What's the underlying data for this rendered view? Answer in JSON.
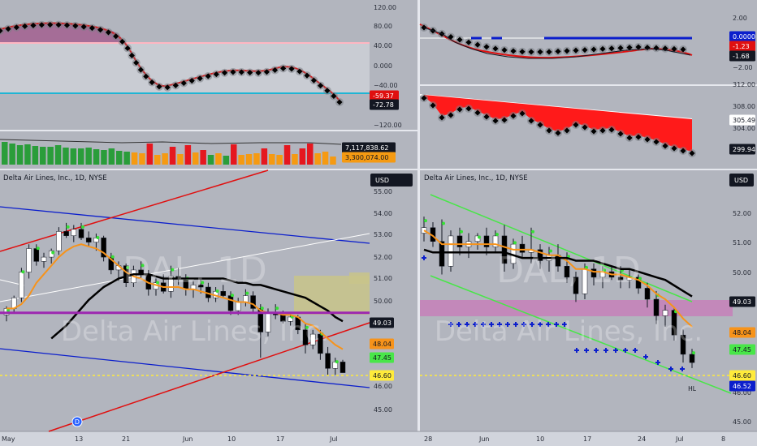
{
  "colors": {
    "bg": "#b2b5be",
    "up": "#ffffff",
    "down": "#000000",
    "ema": "#f7931a",
    "sma": "#000000",
    "red": "#e01010",
    "green": "#36e036",
    "blue": "#0b1ecc",
    "pink": "#ff9aaa",
    "cyan": "#00b7d6",
    "purple": "#9c27b0",
    "yellow": "#ffeb3b",
    "lime": "#48e648"
  },
  "left": {
    "title": "Delta Air Lines, Inc., 1D, NYSE",
    "currency": "USD",
    "watermark_symbol": "DAL, 1D",
    "watermark_name": "Delta Air Lines, Inc.",
    "osc": {
      "ticks": [
        "120.00",
        "80.00",
        "40.00",
        "0.000",
        "−40.00",
        "−80.00",
        "−120.00"
      ],
      "badges": [
        "-59.37",
        "-72.78"
      ]
    },
    "vol": {
      "badges": [
        "7,117,838.62",
        "3,300,074.00"
      ]
    },
    "price": {
      "ticks": [
        "55.00",
        "54.00",
        "53.00",
        "52.00",
        "51.00",
        "50.00",
        "49.00",
        "48.00",
        "47.00",
        "46.00",
        "45.00"
      ],
      "badges": [
        "49.03",
        "48.04",
        "47.45",
        "46.60"
      ]
    },
    "xaxis": [
      "May",
      "13",
      "21",
      "Jun",
      "10",
      "17",
      "24",
      "Jul"
    ],
    "event_marker": "D"
  },
  "right": {
    "title": "Delta Air Lines, Inc., 1D, NYSE",
    "currency": "USD",
    "watermark_symbol": "DAL, 1D",
    "watermark_name": "Delta Air Lines, Inc.",
    "osc1": {
      "ticks": [
        "2.00",
        "−2.00"
      ],
      "badges": [
        "0.0000",
        "-1.23",
        "-1.68"
      ]
    },
    "osc2": {
      "ticks": [
        "312.00",
        "308.00",
        "304.00",
        "300.00"
      ],
      "badges": [
        "305.49",
        "299.94"
      ]
    },
    "price": {
      "ticks": [
        "52.00",
        "51.00",
        "50.00",
        "49.00",
        "48.00",
        "47.00",
        "46.00",
        "45.00"
      ],
      "badges": [
        "49.03",
        "48.04",
        "47.45",
        "46.60",
        "46.52"
      ]
    },
    "xaxis": [
      "28",
      "Jun",
      "10",
      "17",
      "24",
      "Jul",
      "8"
    ],
    "pattern_label": "HL"
  },
  "chart_data": [
    {
      "type": "candlestick",
      "panel": "left-price",
      "ylim": [
        44.5,
        55.3
      ],
      "grid": false,
      "candles": [
        [
          49.3,
          49.7,
          49.0,
          49.6
        ],
        [
          49.6,
          50.2,
          49.4,
          50.1
        ],
        [
          50.1,
          51.5,
          49.9,
          51.3
        ],
        [
          51.3,
          52.6,
          51.0,
          52.4
        ],
        [
          52.4,
          52.6,
          51.6,
          51.8
        ],
        [
          51.8,
          52.2,
          51.5,
          52.0
        ],
        [
          52.0,
          52.4,
          51.7,
          52.3
        ],
        [
          52.3,
          53.4,
          52.1,
          53.2
        ],
        [
          53.2,
          53.6,
          52.9,
          53.0
        ],
        [
          53.0,
          53.5,
          52.7,
          53.3
        ],
        [
          53.3,
          53.6,
          52.8,
          52.9
        ],
        [
          52.9,
          53.2,
          52.5,
          52.7
        ],
        [
          52.7,
          53.1,
          52.3,
          52.9
        ],
        [
          52.9,
          53.0,
          51.8,
          52.0
        ],
        [
          52.0,
          52.2,
          51.2,
          51.4
        ],
        [
          51.4,
          51.8,
          50.9,
          51.6
        ],
        [
          51.6,
          51.7,
          50.6,
          50.8
        ],
        [
          50.8,
          51.6,
          50.6,
          51.4
        ],
        [
          51.4,
          51.8,
          51.0,
          51.2
        ],
        [
          51.2,
          51.4,
          50.2,
          50.5
        ],
        [
          50.5,
          51.0,
          50.2,
          50.8
        ],
        [
          50.8,
          51.2,
          50.3,
          50.4
        ],
        [
          50.4,
          51.6,
          50.1,
          51.1
        ],
        [
          51.1,
          51.5,
          50.7,
          51.0
        ],
        [
          51.0,
          51.2,
          50.2,
          50.5
        ],
        [
          50.5,
          50.9,
          50.1,
          50.7
        ],
        [
          50.7,
          51.0,
          50.3,
          50.6
        ],
        [
          50.6,
          50.8,
          49.9,
          50.1
        ],
        [
          50.1,
          50.6,
          49.9,
          50.4
        ],
        [
          50.4,
          50.7,
          50.1,
          50.2
        ],
        [
          50.2,
          50.4,
          49.3,
          49.5
        ],
        [
          49.5,
          50.1,
          49.3,
          49.9
        ],
        [
          49.9,
          50.5,
          49.7,
          50.2
        ],
        [
          50.2,
          50.4,
          49.4,
          49.6
        ],
        [
          49.6,
          49.8,
          47.3,
          48.5
        ],
        [
          48.5,
          49.6,
          48.3,
          49.4
        ],
        [
          49.4,
          49.8,
          49.1,
          49.3
        ],
        [
          49.3,
          49.5,
          48.9,
          49.0
        ],
        [
          49.0,
          49.4,
          48.8,
          49.2
        ],
        [
          49.2,
          49.3,
          48.4,
          48.6
        ],
        [
          48.6,
          48.9,
          47.5,
          47.9
        ],
        [
          47.9,
          48.6,
          47.7,
          48.4
        ],
        [
          48.4,
          48.6,
          47.2,
          47.5
        ],
        [
          47.5,
          47.8,
          46.5,
          46.8
        ],
        [
          46.8,
          47.3,
          46.5,
          47.1
        ],
        [
          47.1,
          47.2,
          46.6,
          46.6
        ]
      ],
      "ema": [
        49.6,
        49.6,
        49.8,
        50.2,
        50.8,
        51.2,
        51.6,
        52.0,
        52.3,
        52.5,
        52.6,
        52.5,
        52.4,
        52.2,
        51.9,
        51.6,
        51.3,
        51.1,
        51.0,
        50.8,
        50.7,
        50.6,
        50.6,
        50.6,
        50.5,
        50.5,
        50.4,
        50.3,
        50.2,
        50.1,
        50.0,
        49.9,
        49.9,
        49.8,
        49.5,
        49.4,
        49.4,
        49.3,
        49.3,
        49.2,
        48.9,
        48.8,
        48.5,
        48.2,
        47.9,
        47.7
      ],
      "sma": [
        48.2,
        48.5,
        48.8,
        49.2,
        49.6,
        50.0,
        50.3,
        50.6,
        50.8,
        51.0,
        51.1,
        51.2,
        51.2,
        51.2,
        51.1,
        51.0,
        51.0,
        51.0,
        51.0,
        51.0,
        51.0,
        51.0,
        51.0,
        51.0,
        50.9,
        50.8,
        50.8,
        50.7,
        50.7,
        50.6,
        50.5,
        50.4,
        50.3,
        50.2,
        50.1,
        49.9,
        49.7,
        49.5,
        49.2,
        49.0
      ],
      "levels": {
        "purple": 49.4,
        "yellow": 46.6
      }
    },
    {
      "type": "candlestick",
      "panel": "right-price",
      "ylim": [
        44.6,
        52.7
      ],
      "grid": false,
      "candles": [
        [
          51.3,
          51.9,
          51.0,
          51.5
        ],
        [
          51.5,
          51.7,
          50.8,
          51.0
        ],
        [
          51.0,
          51.8,
          49.8,
          50.1
        ],
        [
          50.1,
          51.4,
          49.9,
          51.2
        ],
        [
          51.2,
          51.5,
          50.5,
          50.8
        ],
        [
          50.8,
          51.3,
          50.4,
          51.0
        ],
        [
          51.0,
          51.3,
          50.7,
          51.2
        ],
        [
          51.2,
          51.5,
          50.5,
          50.8
        ],
        [
          50.8,
          51.4,
          50.6,
          51.2
        ],
        [
          51.2,
          51.6,
          49.9,
          50.2
        ],
        [
          50.2,
          51.1,
          50.0,
          50.9
        ],
        [
          50.9,
          51.2,
          50.4,
          50.6
        ],
        [
          50.6,
          51.5,
          50.2,
          50.7
        ],
        [
          50.7,
          50.9,
          50.0,
          50.3
        ],
        [
          50.3,
          50.8,
          49.9,
          50.5
        ],
        [
          50.5,
          50.9,
          49.9,
          50.1
        ],
        [
          50.1,
          50.6,
          49.5,
          49.7
        ],
        [
          49.7,
          49.9,
          48.8,
          49.1
        ],
        [
          49.1,
          50.2,
          48.9,
          50.0
        ],
        [
          50.0,
          50.2,
          49.4,
          49.7
        ],
        [
          49.7,
          50.1,
          49.3,
          49.9
        ],
        [
          49.9,
          50.1,
          49.6,
          49.7
        ],
        [
          49.7,
          50.1,
          49.3,
          49.6
        ],
        [
          49.6,
          50.0,
          49.3,
          49.7
        ],
        [
          49.7,
          49.8,
          49.1,
          49.3
        ],
        [
          49.3,
          49.5,
          48.6,
          48.9
        ],
        [
          48.9,
          49.2,
          48.0,
          48.3
        ],
        [
          48.3,
          48.7,
          47.9,
          48.5
        ],
        [
          48.5,
          48.6,
          47.4,
          47.6
        ],
        [
          47.6,
          47.8,
          46.6,
          46.9
        ],
        [
          46.9,
          47.1,
          46.4,
          46.6
        ]
      ],
      "ema": [
        51.4,
        51.2,
        50.9,
        50.9,
        50.9,
        50.9,
        50.9,
        50.9,
        50.9,
        50.8,
        50.7,
        50.7,
        50.7,
        50.6,
        50.5,
        50.5,
        50.3,
        50.0,
        50.0,
        49.9,
        49.9,
        49.8,
        49.8,
        49.7,
        49.6,
        49.4,
        49.1,
        48.9,
        48.6,
        48.2,
        47.9
      ],
      "sma": [
        50.7,
        50.6,
        50.6,
        50.6,
        50.6,
        50.6,
        50.6,
        50.6,
        50.6,
        50.6,
        50.5,
        50.4,
        50.4,
        50.4,
        50.4,
        50.4,
        50.4,
        50.3,
        50.3,
        50.3,
        50.2,
        50.1,
        50.0,
        50.0,
        49.9,
        49.8,
        49.7,
        49.6,
        49.4,
        49.2,
        49.0
      ],
      "levels": {
        "pink_zone": [
          48.8,
          49.3
        ],
        "yellow": 46.6
      }
    }
  ]
}
